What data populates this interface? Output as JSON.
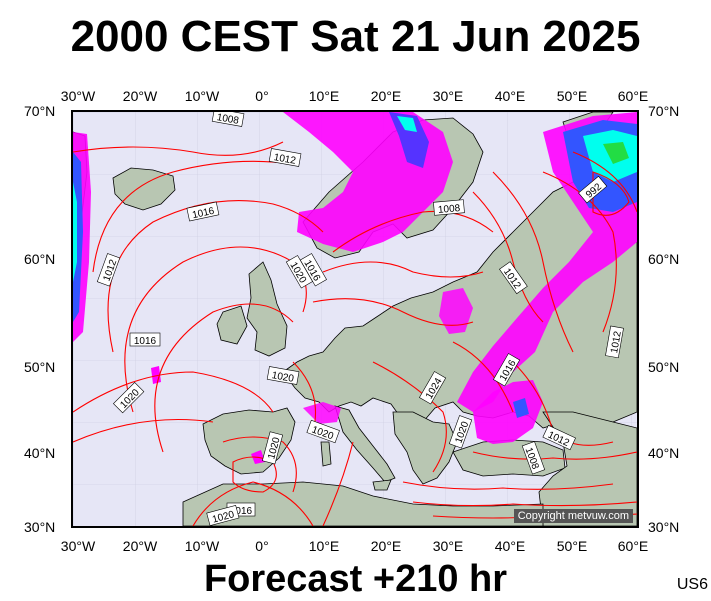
{
  "header": {
    "title": "2000 CEST Sat 21 Jun 2025"
  },
  "footer": {
    "forecast": "Forecast +210 hr",
    "code": "US6"
  },
  "map": {
    "copyright": "Copyright metvuw.com",
    "lon_ticks": [
      "30°W",
      "20°W",
      "10°W",
      "0°",
      "10°E",
      "20°E",
      "30°E",
      "40°E",
      "50°E",
      "60°E"
    ],
    "lat_ticks": [
      "70°N",
      "60°N",
      "50°N",
      "40°N",
      "30°N"
    ],
    "isobar_labels": [
      "1008",
      "1012",
      "1016",
      "1012",
      "1020",
      "1016",
      "1008",
      "1012",
      "992",
      "1016",
      "1012",
      "1020",
      "1024",
      "1016",
      "1020",
      "1020",
      "1012",
      "1008",
      "1020",
      "1020",
      "1016",
      "1020"
    ],
    "colors": {
      "land": "#b8c6b2",
      "sea": "#e6e6f6",
      "isobar": "#ff0000",
      "precip_magenta": "#ff00ff",
      "precip_blue": "#3355ff",
      "precip_cyan": "#00ffee",
      "precip_green": "#22dd44"
    }
  }
}
